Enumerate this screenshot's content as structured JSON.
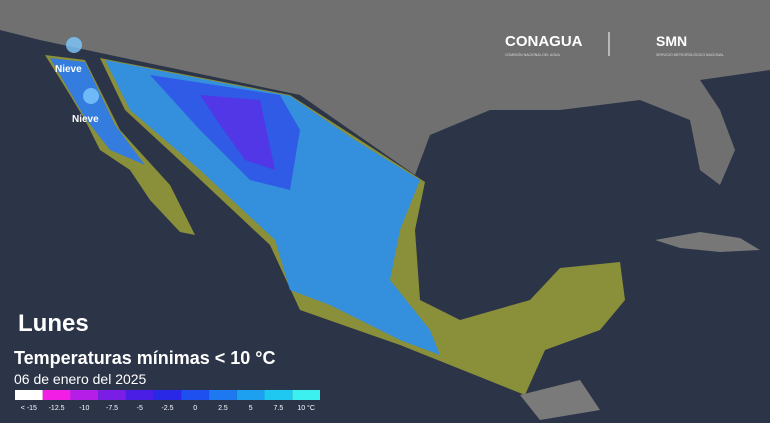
{
  "header": {
    "logo1": "CONAGUA",
    "logo1_sub": "COMISIÓN NACIONAL DEL AGUA",
    "logo2": "SMN",
    "logo2_sub": "SERVICIO METEOROLÓGICO NACIONAL"
  },
  "map": {
    "markers": [
      {
        "label": "Nieve"
      },
      {
        "label": "Nieve"
      }
    ]
  },
  "caption": {
    "day": "Lunes",
    "title": "Temperaturas mínimas < 10 °C",
    "date": "06 de enero del 2025"
  },
  "legend": [
    {
      "label": "< -15",
      "color": "#ffffff"
    },
    {
      "label": "-12.5",
      "color": "#f21ee6"
    },
    {
      "label": "-10",
      "color": "#b41ee6"
    },
    {
      "label": "-7.5",
      "color": "#7a1ee6"
    },
    {
      "label": "-5",
      "color": "#4b1ee6"
    },
    {
      "label": "-2.5",
      "color": "#2828e6"
    },
    {
      "label": "0",
      "color": "#1e50f0"
    },
    {
      "label": "2.5",
      "color": "#1e78f0"
    },
    {
      "label": "5",
      "color": "#1ea0f0"
    },
    {
      "label": "7.5",
      "color": "#1ec8f0"
    },
    {
      "label": "10 °C",
      "color": "#3cf0f0"
    }
  ]
}
